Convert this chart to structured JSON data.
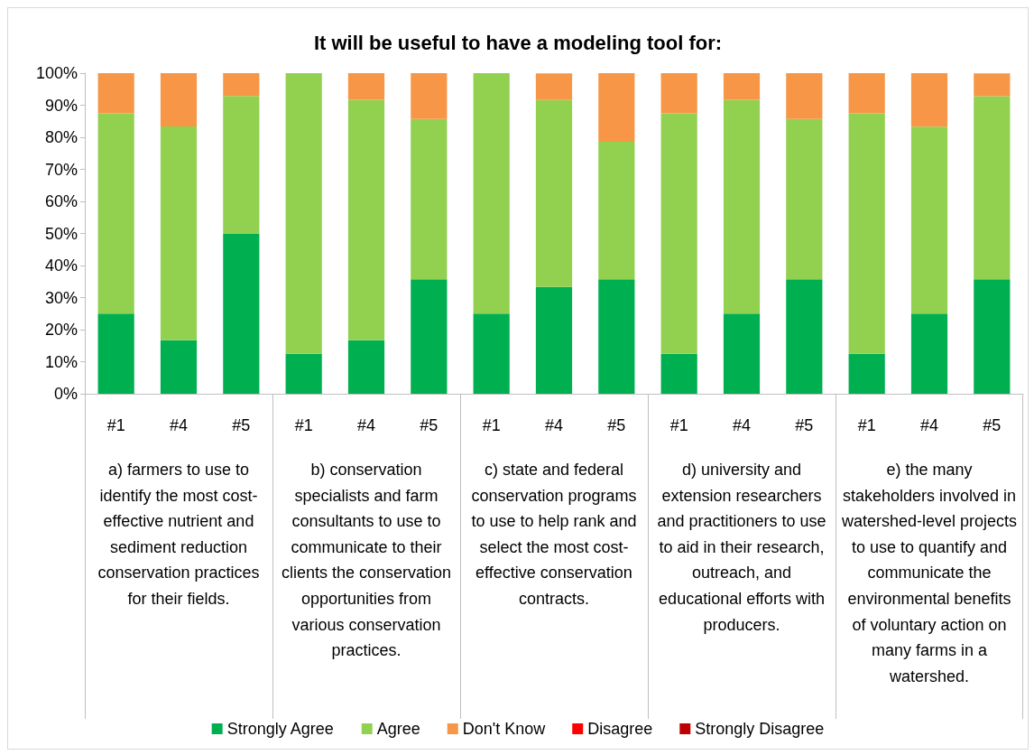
{
  "chart_data": {
    "type": "bar",
    "title": "It will be useful to have a modeling tool for:",
    "categories": [
      "#1",
      "#4",
      "#5",
      "#1",
      "#4",
      "#5",
      "#1",
      "#4",
      "#5",
      "#1",
      "#4",
      "#5",
      "#1",
      "#4",
      "#5"
    ],
    "series": [
      {
        "name": "Strongly Agree",
        "color": "#00b050",
        "values": [
          25,
          16.7,
          50,
          12.5,
          16.7,
          35.7,
          25,
          33.3,
          35.7,
          12.5,
          25,
          35.7,
          12.5,
          25,
          35.7
        ]
      },
      {
        "name": "Agree",
        "color": "#92d050",
        "values": [
          62.5,
          66.7,
          42.9,
          87.5,
          75,
          50,
          75,
          58.3,
          42.9,
          75,
          66.7,
          50,
          75,
          58.3,
          57.1
        ]
      },
      {
        "name": "Don't Know",
        "color": "#f79646",
        "values": [
          12.5,
          16.7,
          7.1,
          0,
          8.3,
          14.3,
          0,
          8.3,
          21.4,
          12.5,
          8.3,
          14.3,
          12.5,
          16.7,
          7.1
        ]
      },
      {
        "name": "Disagree",
        "color": "#ff0000",
        "values": [
          0,
          0,
          0,
          0,
          0,
          0,
          0,
          0,
          0,
          0,
          0,
          0,
          0,
          0,
          0
        ]
      },
      {
        "name": "Strongly Disagree",
        "color": "#c00000",
        "values": [
          0,
          0,
          0,
          0,
          0,
          0,
          0,
          0,
          0,
          0,
          0,
          0,
          0,
          0,
          0
        ]
      }
    ],
    "stacked": true,
    "legend": "bottom",
    "ylim": [
      0,
      100
    ],
    "yticks": [
      {
        "value": 0,
        "label": "0%"
      },
      {
        "value": 10,
        "label": "10%"
      },
      {
        "value": 20,
        "label": "20%"
      },
      {
        "value": 30,
        "label": "30%"
      },
      {
        "value": 40,
        "label": "40%"
      },
      {
        "value": 50,
        "label": "50%"
      },
      {
        "value": 60,
        "label": "60%"
      },
      {
        "value": 70,
        "label": "70%"
      },
      {
        "value": 80,
        "label": "80%"
      },
      {
        "value": 90,
        "label": "90%"
      },
      {
        "value": 100,
        "label": "100%"
      }
    ],
    "annotations": [
      "a) farmers to use to identify the most cost-effective nutrient and sediment reduction conservation practices for their fields.",
      "b) conservation specialists  and farm consultants to use to communicate to their clients the conservation opportunities from various conservation practices.",
      "c) state and federal conservation programs to use to help rank and select the most cost-effective conservation contracts.",
      "d) university and extension researchers and practitioners to use to aid in their research, outreach, and educational efforts with producers.",
      "e) the many stakeholders involved in watershed-level projects to use to quantify and communicate the environmental benefits of voluntary action on many farms in a watershed."
    ]
  }
}
